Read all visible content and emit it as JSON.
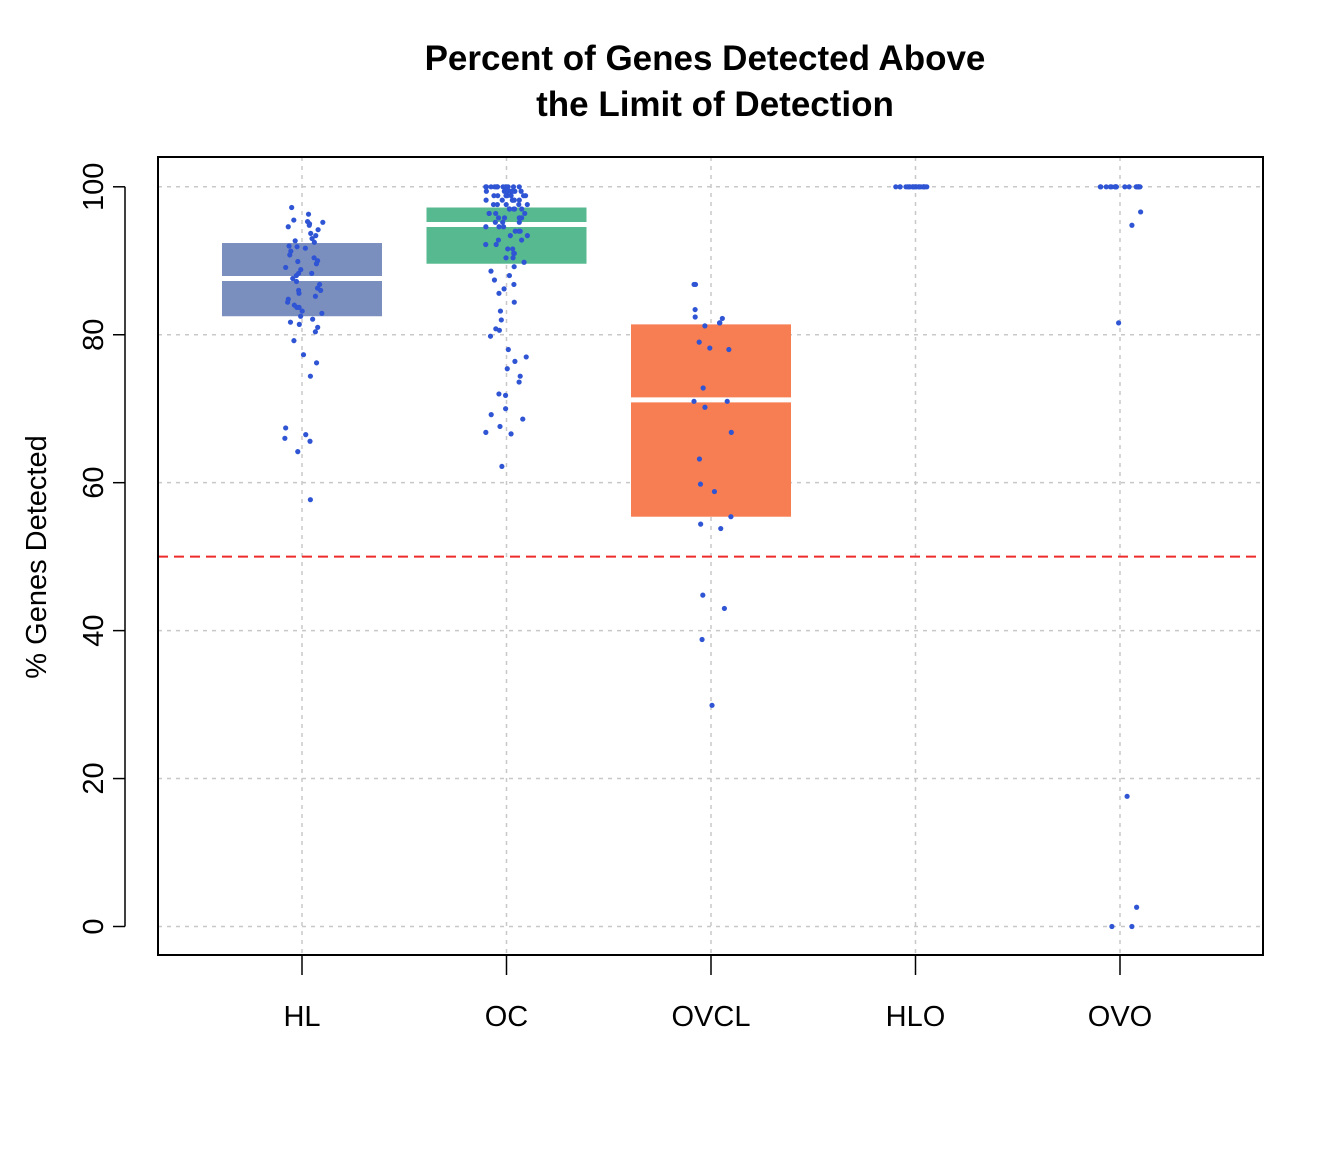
{
  "chart_data": {
    "type": "box",
    "title_lines": [
      "Percent of Genes Detected Above",
      "the Limit of Detection"
    ],
    "xlabel": "",
    "ylabel": "% Genes Detected",
    "ylim": [
      -4,
      104
    ],
    "yticks": [
      0,
      20,
      40,
      60,
      80,
      100
    ],
    "grid": true,
    "reference_line": {
      "y": 50,
      "color": "#ee2b2b",
      "style": "dashed"
    },
    "categories": [
      "HL",
      "OC",
      "OVCL",
      "HLO",
      "OVO"
    ],
    "boxes": [
      {
        "category": "HL",
        "q1": 82.5,
        "median": 87.6,
        "q3": 92.4,
        "color": "#7b8fbf"
      },
      {
        "category": "OC",
        "q1": 89.6,
        "median": 94.9,
        "q3": 97.2,
        "color": "#56b990"
      },
      {
        "category": "OVCL",
        "q1": 55.4,
        "median": 71.2,
        "q3": 81.4,
        "color": "#f77d52"
      },
      {
        "category": "HLO",
        "q1": 100,
        "median": 100,
        "q3": 100,
        "color": "#7b8fbf"
      },
      {
        "category": "OVO",
        "q1": 100,
        "median": 100,
        "q3": 100,
        "color": "#56b990"
      }
    ],
    "points_color": "#2f55d4",
    "points": {
      "HL": [
        96.3,
        95.5,
        95.3,
        95.2,
        95.0,
        94.8,
        94.6,
        94.2,
        93.7,
        93.4,
        93.0,
        92.7,
        92.5,
        92.0,
        91.7,
        91.3,
        90.8,
        90.4,
        90.0,
        89.6,
        89.1,
        88.8,
        88.3,
        88.0,
        87.6,
        87.2,
        86.8,
        86.3,
        86.0,
        85.6,
        85.2,
        84.8,
        84.4,
        84.0,
        83.7,
        83.2,
        82.9,
        82.5,
        82.1,
        81.7,
        81.4,
        81.0,
        80.4,
        79.2,
        77.3,
        76.2,
        74.4,
        67.4,
        66.5,
        66.0,
        65.6,
        64.2,
        57.7,
        97.2,
        91.9,
        89.9,
        88.3,
        86.0,
        83.7
      ],
      "OC": [
        100,
        100,
        100,
        100,
        100,
        100,
        100,
        100,
        100,
        100,
        100,
        100,
        99.4,
        99.4,
        99.4,
        99.4,
        99.4,
        99.4,
        99.4,
        99.4,
        98.8,
        98.8,
        98.8,
        98.8,
        98.8,
        98.8,
        98.8,
        98.2,
        98.2,
        98.2,
        98.2,
        98.2,
        98.2,
        97.6,
        97.6,
        97.6,
        97.6,
        97.6,
        97.0,
        97.0,
        97.0,
        97.0,
        97.0,
        96.4,
        96.4,
        96.4,
        96.4,
        95.8,
        95.8,
        95.8,
        95.8,
        95.2,
        95.2,
        95.2,
        94.6,
        94.6,
        94.6,
        94.0,
        94.0,
        94.0,
        93.4,
        93.4,
        92.8,
        92.8,
        92.2,
        92.2,
        91.6,
        91.6,
        91.0,
        91.0,
        90.4,
        90.4,
        89.8,
        89.2,
        88.6,
        88.0,
        87.4,
        86.8,
        86.2,
        85.6,
        84.4,
        83.2,
        82.0,
        80.8,
        80.6,
        79.8,
        78.0,
        77.0,
        76.4,
        75.4,
        74.4,
        73.6,
        72.0,
        71.8,
        70.0,
        69.2,
        68.6,
        67.6,
        66.8,
        66.6,
        62.2
      ],
      "OVCL": [
        86.8,
        86.8,
        83.4,
        82.4,
        82.2,
        81.6,
        81.6,
        81.2,
        79.0,
        78.2,
        78.0,
        72.8,
        71.0,
        71.0,
        70.2,
        66.8,
        63.2,
        59.8,
        58.8,
        55.4,
        54.4,
        53.8,
        44.8,
        43.0,
        38.8,
        29.9
      ],
      "HLO": [
        100,
        100,
        100,
        100,
        100,
        100,
        100,
        100,
        100,
        100,
        100,
        100,
        100,
        100,
        100,
        100,
        100,
        100,
        100,
        100
      ],
      "OVO": [
        100,
        100,
        100,
        100,
        100,
        100,
        100,
        100,
        100,
        100,
        100,
        100,
        100,
        100,
        100,
        100,
        100,
        100,
        100,
        96.6,
        94.8,
        81.6,
        17.6,
        2.6,
        0,
        0
      ]
    }
  }
}
